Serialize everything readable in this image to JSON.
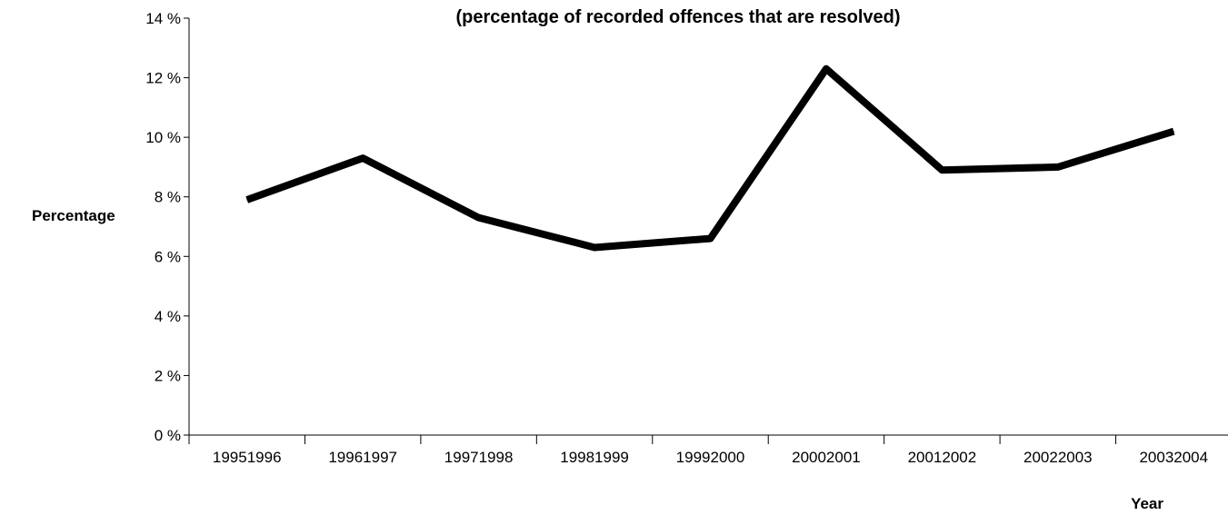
{
  "chart_data": {
    "type": "line",
    "title": "(percentage of recorded offences that are resolved)",
    "xlabel": "Year",
    "ylabel": "Percentage",
    "categories": [
      "19951996",
      "19961997",
      "19971998",
      "19981999",
      "19992000",
      "20002001",
      "20012002",
      "20022003",
      "20032004"
    ],
    "series": [
      {
        "values": [
          7.9,
          9.3,
          7.3,
          6.3,
          6.6,
          12.3,
          8.9,
          9.0,
          10.2
        ]
      }
    ],
    "ylim": [
      0,
      14
    ],
    "yticks": [
      0,
      2,
      4,
      6,
      8,
      10,
      12,
      14
    ],
    "ytick_labels": [
      "0 %",
      "2 %",
      "4 %",
      "6 %",
      "8 %",
      "10 %",
      "12 %",
      "14 %"
    ],
    "grid": false,
    "legend": "none",
    "line_color": "#000000"
  }
}
